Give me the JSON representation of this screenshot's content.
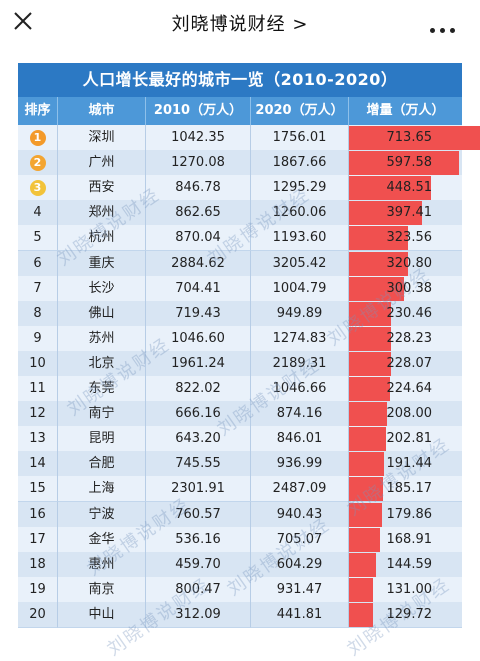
{
  "header": {
    "title": "刘晓博说财经 >",
    "close_icon": "close-icon",
    "more_icon": "more-icon"
  },
  "table": {
    "title": "人口增长最好的城市一览（2010-2020）",
    "columns": [
      "排序",
      "城市",
      "2010（万人）",
      "2020（万人）",
      "增量（万人）"
    ],
    "rows": [
      {
        "rank": "1",
        "city": "深圳",
        "y2010": "1042.35",
        "y2020": "1756.01",
        "increase": "713.65",
        "inc": 713.65,
        "badge": "#f39a2a"
      },
      {
        "rank": "2",
        "city": "广州",
        "y2010": "1270.08",
        "y2020": "1867.66",
        "increase": "597.58",
        "inc": 597.58,
        "badge": "#f3a531"
      },
      {
        "rank": "3",
        "city": "西安",
        "y2010": "846.78",
        "y2020": "1295.29",
        "increase": "448.51",
        "inc": 448.51,
        "badge": "#f2c33a"
      },
      {
        "rank": "4",
        "city": "郑州",
        "y2010": "862.65",
        "y2020": "1260.06",
        "increase": "397.41",
        "inc": 397.41
      },
      {
        "rank": "5",
        "city": "杭州",
        "y2010": "870.04",
        "y2020": "1193.60",
        "increase": "323.56",
        "inc": 323.56
      },
      {
        "rank": "6",
        "city": "重庆",
        "y2010": "2884.62",
        "y2020": "3205.42",
        "increase": "320.80",
        "inc": 320.8
      },
      {
        "rank": "7",
        "city": "长沙",
        "y2010": "704.41",
        "y2020": "1004.79",
        "increase": "300.38",
        "inc": 300.38
      },
      {
        "rank": "8",
        "city": "佛山",
        "y2010": "719.43",
        "y2020": "949.89",
        "increase": "230.46",
        "inc": 230.46
      },
      {
        "rank": "9",
        "city": "苏州",
        "y2010": "1046.60",
        "y2020": "1274.83",
        "increase": "228.23",
        "inc": 228.23
      },
      {
        "rank": "10",
        "city": "北京",
        "y2010": "1961.24",
        "y2020": "2189.31",
        "increase": "228.07",
        "inc": 228.07
      },
      {
        "rank": "11",
        "city": "东莞",
        "y2010": "822.02",
        "y2020": "1046.66",
        "increase": "224.64",
        "inc": 224.64
      },
      {
        "rank": "12",
        "city": "南宁",
        "y2010": "666.16",
        "y2020": "874.16",
        "increase": "208.00",
        "inc": 208.0
      },
      {
        "rank": "13",
        "city": "昆明",
        "y2010": "643.20",
        "y2020": "846.01",
        "increase": "202.81",
        "inc": 202.81
      },
      {
        "rank": "14",
        "city": "合肥",
        "y2010": "745.55",
        "y2020": "936.99",
        "increase": "191.44",
        "inc": 191.44
      },
      {
        "rank": "15",
        "city": "上海",
        "y2010": "2301.91",
        "y2020": "2487.09",
        "increase": "185.17",
        "inc": 185.17
      },
      {
        "rank": "16",
        "city": "宁波",
        "y2010": "760.57",
        "y2020": "940.43",
        "increase": "179.86",
        "inc": 179.86
      },
      {
        "rank": "17",
        "city": "金华",
        "y2010": "536.16",
        "y2020": "705.07",
        "increase": "168.91",
        "inc": 168.91
      },
      {
        "rank": "18",
        "city": "惠州",
        "y2010": "459.70",
        "y2020": "604.29",
        "increase": "144.59",
        "inc": 144.59
      },
      {
        "rank": "19",
        "city": "南京",
        "y2010": "800.47",
        "y2020": "931.47",
        "increase": "131.00",
        "inc": 131.0
      },
      {
        "rank": "20",
        "city": "中山",
        "y2010": "312.09",
        "y2020": "441.81",
        "increase": "129.72",
        "inc": 129.72
      }
    ]
  },
  "watermark": "刘晓博说财经",
  "colors": {
    "bar": "#f0504f",
    "title_bg": "#2c79c4",
    "header_bg": "#4d98d8"
  }
}
